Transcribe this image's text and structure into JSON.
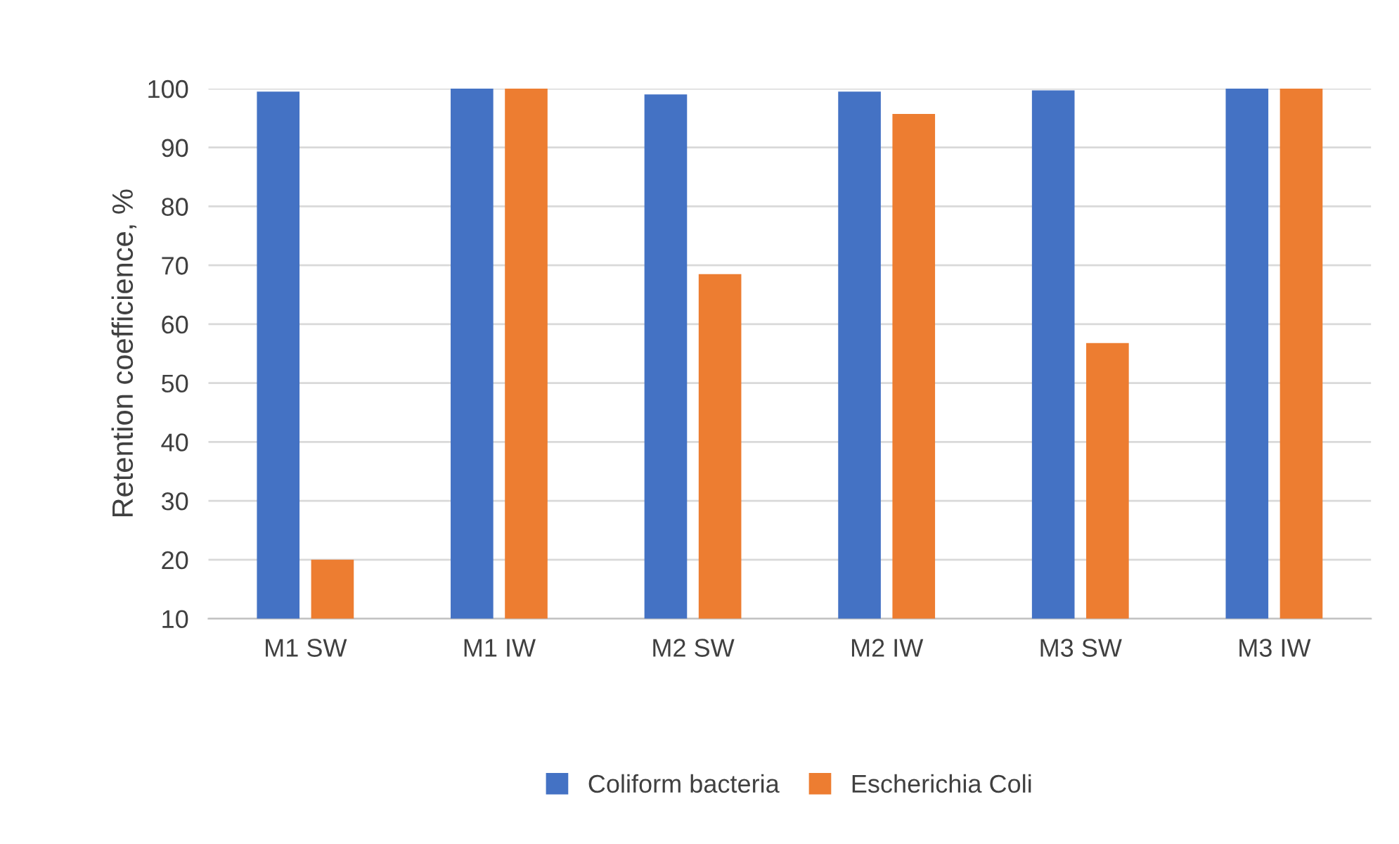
{
  "chart_data": {
    "type": "bar",
    "ylabel": "Retention coefficience, %",
    "categories": [
      "M1 SW",
      "M1 IW",
      "M2 SW",
      "M2 IW",
      "M3 SW",
      "M3 IW"
    ],
    "series": [
      {
        "name": "Coliform bacteria",
        "color": "#4472c4",
        "values": [
          99.5,
          100,
          99,
          99.5,
          99.7,
          100
        ]
      },
      {
        "name": "Escherichia Coli",
        "color": "#ed7d31",
        "values": [
          20,
          100,
          68.5,
          95.7,
          56.8,
          100
        ]
      }
    ],
    "ylim": [
      10,
      100
    ],
    "yticks": [
      10,
      20,
      30,
      40,
      50,
      60,
      70,
      80,
      90,
      100
    ],
    "grid": "y",
    "legend": "bottom"
  }
}
